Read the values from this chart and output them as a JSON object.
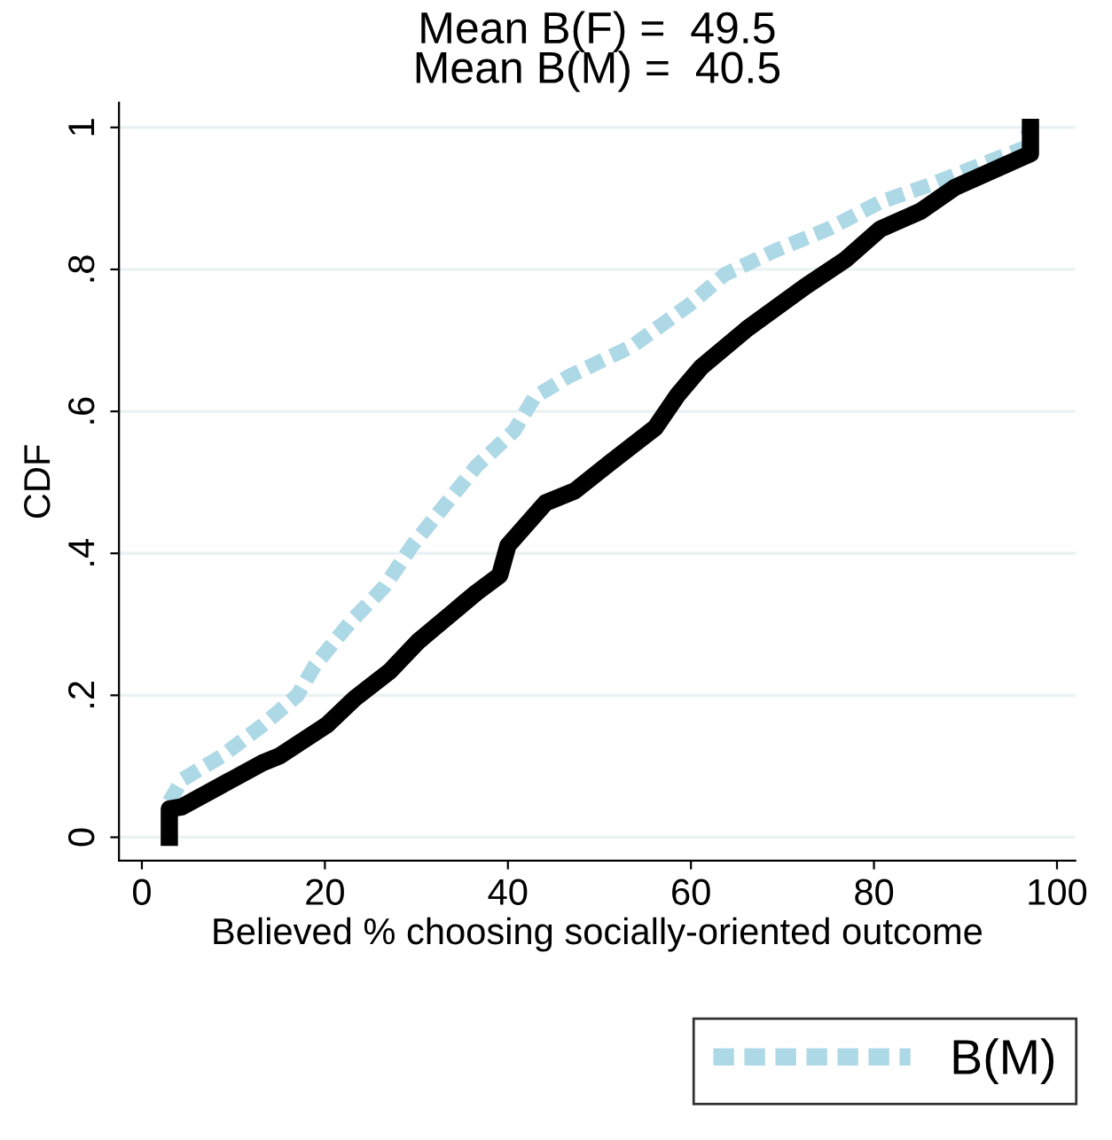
{
  "chart_data": {
    "type": "line",
    "title": "Mean B(F) =  49.5\nMean B(M) =  40.5",
    "xlabel": "Believed % choosing socially-oriented outcome",
    "ylabel": "CDF",
    "xlim": [
      -2.5,
      102
    ],
    "ylim": [
      -0.033,
      1.035
    ],
    "xticks": [
      0,
      20,
      40,
      60,
      80,
      100
    ],
    "yticks": [
      {
        "value": 0,
        "label": "0"
      },
      {
        "value": 0.2,
        "label": ".2"
      },
      {
        "value": 0.4,
        "label": ".4"
      },
      {
        "value": 0.6,
        "label": ".6"
      },
      {
        "value": 0.8,
        "label": ".8"
      },
      {
        "value": 1,
        "label": "1"
      }
    ],
    "grid": "y",
    "legend": "bottom right",
    "series": [
      {
        "color": "#000000",
        "line_style": "solid",
        "x": [
          3,
          3,
          4.4,
          13.2,
          15.1,
          20.2,
          23.3,
          27.1,
          30.2,
          36.5,
          39.1,
          40.0,
          44.1,
          47.3,
          51.0,
          56.1,
          58.6,
          61.1,
          66.2,
          72.5,
          76.9,
          80.7,
          85.1,
          88.9,
          97.1,
          97.1
        ],
        "values": [
          0,
          0.04,
          0.043,
          0.105,
          0.115,
          0.158,
          0.196,
          0.234,
          0.276,
          0.344,
          0.369,
          0.411,
          0.471,
          0.488,
          0.526,
          0.577,
          0.624,
          0.662,
          0.717,
          0.776,
          0.814,
          0.857,
          0.882,
          0.916,
          0.963,
          1
        ]
      },
      {
        "name": "B(M)",
        "color": "#add8e6",
        "line_style": "dashed",
        "x": [
          3,
          4.4,
          8.8,
          13.2,
          17.0,
          18.9,
          22.7,
          26.5,
          29.6,
          32.8,
          36.5,
          40.7,
          42.9,
          46.6,
          53.6,
          59.9,
          63.7,
          69.3,
          75.0,
          80.7,
          86.3,
          91.4,
          96.4,
          97
        ],
        "values": [
          0.05,
          0.081,
          0.115,
          0.158,
          0.2,
          0.242,
          0.302,
          0.353,
          0.412,
          0.463,
          0.522,
          0.573,
          0.62,
          0.649,
          0.692,
          0.751,
          0.793,
          0.827,
          0.857,
          0.895,
          0.92,
          0.946,
          0.971,
          1
        ]
      }
    ]
  }
}
